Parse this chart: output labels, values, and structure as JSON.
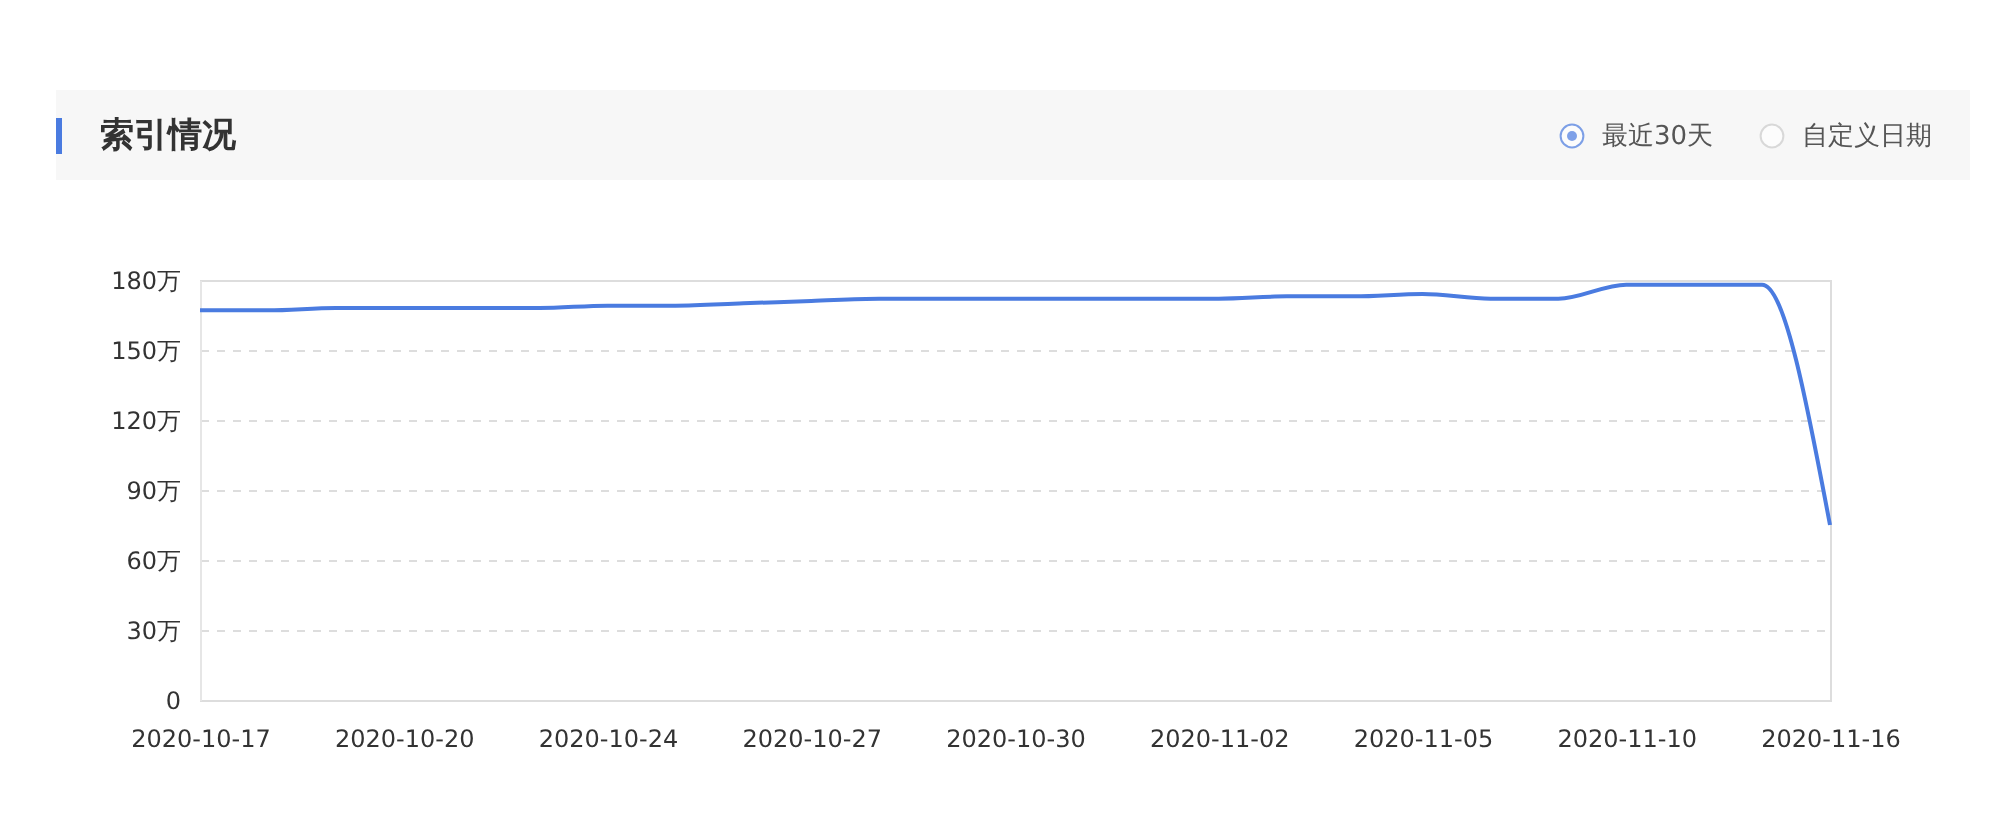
{
  "chart_data": {
    "type": "line",
    "title": "索引情况",
    "annotations": [
      "最近30天",
      "自定义日期"
    ],
    "categories": [
      "2020-10-17",
      null,
      null,
      "2020-10-20",
      null,
      null,
      "2020-10-24",
      null,
      null,
      "2020-10-27",
      null,
      null,
      "2020-10-30",
      null,
      null,
      "2020-11-02",
      null,
      null,
      "2020-11-05",
      null,
      null,
      "2020-11-10",
      null,
      null,
      "2020-11-16"
    ],
    "series": [
      {
        "color": "#4a7be0",
        "values": [
          167,
          167,
          168,
          168,
          168,
          168,
          169,
          169,
          170,
          171,
          172,
          172,
          172,
          172,
          172,
          172,
          173,
          173,
          174,
          172,
          172,
          178,
          178,
          178,
          75
        ]
      }
    ],
    "ylim": [
      0,
      180
    ],
    "yticks": [
      0,
      {
        "value": 30,
        "label": "30万"
      },
      {
        "value": 60,
        "label": "60万"
      },
      {
        "value": 90,
        "label": "90万"
      },
      {
        "value": 120,
        "label": "120万"
      },
      {
        "value": 150,
        "label": "150万"
      },
      {
        "value": 180,
        "label": "180万"
      }
    ],
    "grid": "y",
    "line_style": "solid",
    "marker": "none"
  }
}
